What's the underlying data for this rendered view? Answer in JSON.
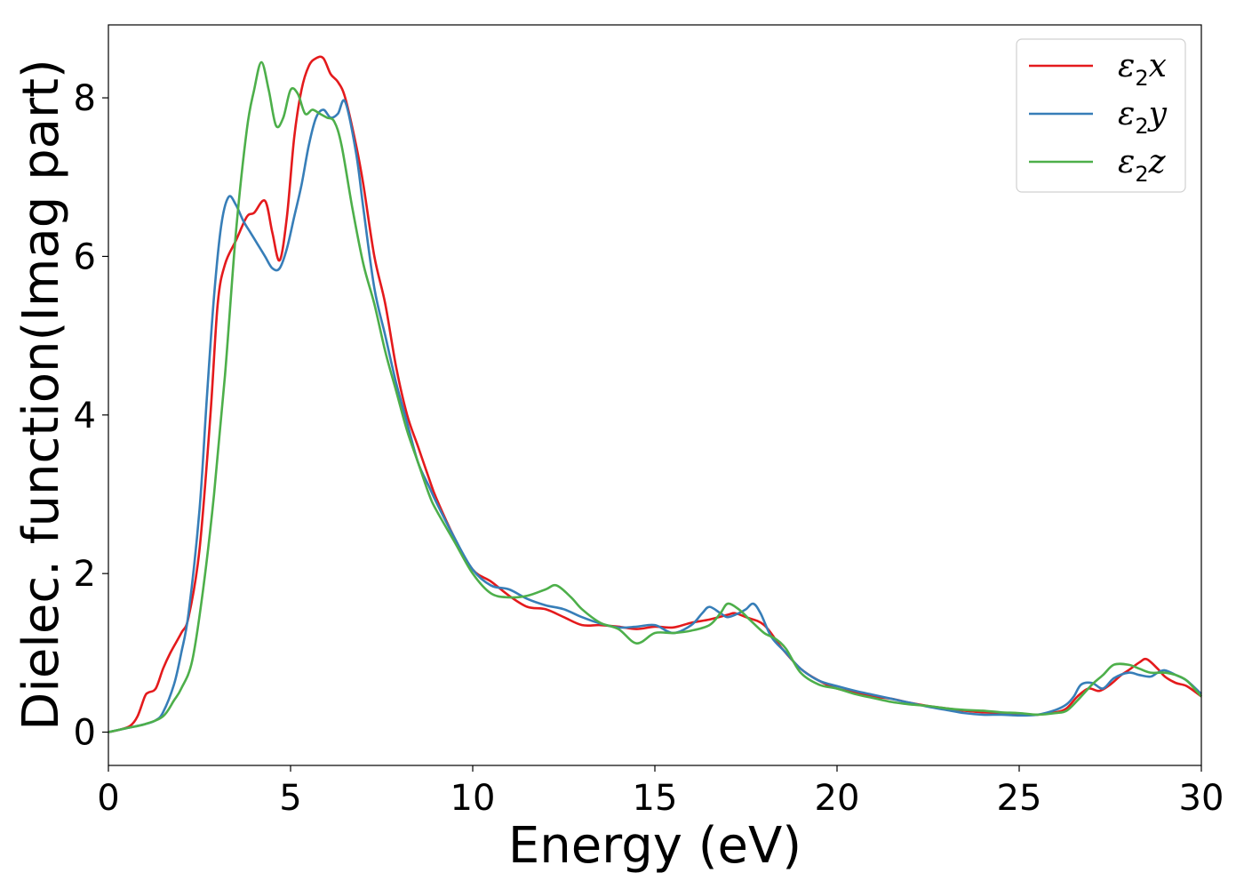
{
  "chart_data": {
    "type": "line",
    "title": "",
    "xlabel": "Energy (eV)",
    "ylabel": "Dielec. function(Imag part)",
    "xlim": [
      0,
      30
    ],
    "ylim": [
      -0.42,
      8.92
    ],
    "xticks": [
      0,
      5,
      10,
      15,
      20,
      25,
      30
    ],
    "yticks": [
      0,
      2,
      4,
      6,
      8
    ],
    "grid": false,
    "legend_position": "top-right",
    "series": [
      {
        "name": "ε2x",
        "color": "#e41a1c",
        "x": [
          0,
          0.3,
          0.6,
          0.8,
          1.0,
          1.1,
          1.3,
          1.5,
          1.7,
          2.0,
          2.2,
          2.5,
          2.8,
          3.0,
          3.2,
          3.5,
          3.8,
          4.0,
          4.3,
          4.5,
          4.7,
          4.9,
          5.1,
          5.3,
          5.5,
          5.7,
          5.9,
          6.1,
          6.3,
          6.5,
          6.8,
          7.0,
          7.3,
          7.6,
          7.9,
          8.2,
          8.5,
          8.8,
          9.0,
          9.5,
          10.0,
          10.5,
          11.0,
          11.5,
          12.0,
          12.5,
          13.0,
          13.5,
          14.0,
          14.5,
          15.0,
          15.5,
          16.0,
          16.5,
          17.0,
          17.2,
          17.5,
          18.0,
          18.5,
          19.0,
          19.5,
          20.0,
          20.5,
          21.0,
          21.5,
          22.0,
          22.5,
          23.0,
          23.5,
          24.0,
          24.5,
          25.0,
          25.5,
          26.0,
          26.3,
          26.6,
          26.9,
          27.2,
          27.5,
          27.8,
          28.0,
          28.3,
          28.5,
          28.8,
          29.0,
          29.3,
          29.6,
          30.0
        ],
        "values": [
          0.0,
          0.03,
          0.08,
          0.2,
          0.45,
          0.5,
          0.55,
          0.8,
          1.0,
          1.25,
          1.45,
          2.3,
          4.0,
          5.4,
          5.9,
          6.2,
          6.5,
          6.55,
          6.7,
          6.3,
          5.95,
          6.5,
          7.5,
          8.1,
          8.4,
          8.5,
          8.5,
          8.3,
          8.2,
          8.0,
          7.4,
          6.9,
          6.0,
          5.4,
          4.6,
          4.0,
          3.6,
          3.2,
          2.95,
          2.45,
          2.05,
          1.9,
          1.72,
          1.58,
          1.55,
          1.45,
          1.35,
          1.35,
          1.33,
          1.3,
          1.33,
          1.32,
          1.38,
          1.42,
          1.48,
          1.5,
          1.45,
          1.35,
          1.05,
          0.8,
          0.65,
          0.55,
          0.5,
          0.45,
          0.42,
          0.37,
          0.33,
          0.3,
          0.27,
          0.25,
          0.24,
          0.22,
          0.22,
          0.25,
          0.3,
          0.45,
          0.55,
          0.52,
          0.6,
          0.72,
          0.78,
          0.88,
          0.92,
          0.8,
          0.7,
          0.62,
          0.58,
          0.45
        ]
      },
      {
        "name": "ε2y",
        "color": "#377eb8",
        "x": [
          0,
          0.5,
          1.0,
          1.3,
          1.5,
          1.8,
          2.0,
          2.2,
          2.5,
          2.7,
          2.9,
          3.1,
          3.3,
          3.5,
          3.7,
          3.9,
          4.1,
          4.3,
          4.5,
          4.7,
          4.9,
          5.1,
          5.3,
          5.5,
          5.7,
          5.9,
          6.1,
          6.3,
          6.5,
          6.8,
          7.0,
          7.3,
          7.6,
          7.9,
          8.2,
          8.5,
          8.8,
          9.0,
          9.5,
          10.0,
          10.5,
          11.0,
          11.5,
          12.0,
          12.5,
          13.0,
          13.5,
          14.0,
          14.5,
          15.0,
          15.5,
          16.0,
          16.3,
          16.5,
          16.8,
          17.0,
          17.3,
          17.5,
          17.7,
          17.9,
          18.2,
          18.6,
          19.0,
          19.5,
          20.0,
          20.5,
          21.0,
          21.5,
          22.0,
          22.5,
          23.0,
          23.5,
          24.0,
          24.5,
          25.0,
          25.5,
          26.0,
          26.3,
          26.5,
          26.7,
          27.0,
          27.3,
          27.6,
          28.0,
          28.3,
          28.6,
          28.8,
          29.0,
          29.3,
          29.6,
          30.0
        ],
        "values": [
          0.0,
          0.05,
          0.1,
          0.15,
          0.25,
          0.6,
          1.0,
          1.5,
          2.8,
          4.2,
          5.5,
          6.4,
          6.75,
          6.65,
          6.45,
          6.3,
          6.15,
          6.0,
          5.85,
          5.85,
          6.1,
          6.5,
          6.9,
          7.4,
          7.75,
          7.85,
          7.75,
          7.8,
          7.95,
          7.3,
          6.6,
          5.6,
          5.0,
          4.4,
          3.9,
          3.4,
          3.1,
          2.9,
          2.45,
          2.05,
          1.85,
          1.8,
          1.68,
          1.6,
          1.55,
          1.45,
          1.37,
          1.32,
          1.33,
          1.35,
          1.25,
          1.35,
          1.5,
          1.58,
          1.5,
          1.45,
          1.5,
          1.55,
          1.62,
          1.5,
          1.2,
          1.0,
          0.8,
          0.65,
          0.58,
          0.52,
          0.47,
          0.42,
          0.37,
          0.32,
          0.28,
          0.24,
          0.22,
          0.22,
          0.21,
          0.22,
          0.28,
          0.35,
          0.45,
          0.6,
          0.62,
          0.55,
          0.68,
          0.75,
          0.72,
          0.7,
          0.75,
          0.78,
          0.72,
          0.65,
          0.48
        ]
      },
      {
        "name": "ε2z",
        "color": "#4daf4a",
        "x": [
          0,
          0.5,
          1.0,
          1.5,
          1.8,
          2.0,
          2.3,
          2.6,
          2.9,
          3.2,
          3.5,
          3.8,
          4.0,
          4.2,
          4.4,
          4.6,
          4.8,
          5.0,
          5.2,
          5.4,
          5.6,
          5.8,
          6.0,
          6.2,
          6.4,
          6.7,
          7.0,
          7.3,
          7.6,
          7.9,
          8.2,
          8.5,
          8.8,
          9.0,
          9.5,
          10.0,
          10.5,
          11.0,
          11.5,
          12.0,
          12.3,
          12.7,
          13.0,
          13.5,
          14.0,
          14.5,
          15.0,
          15.5,
          16.0,
          16.5,
          16.8,
          17.0,
          17.3,
          17.6,
          18.0,
          18.3,
          18.6,
          19.0,
          19.5,
          20.0,
          20.5,
          21.0,
          21.5,
          22.0,
          22.5,
          23.0,
          23.5,
          24.0,
          24.5,
          25.0,
          25.5,
          26.0,
          26.3,
          26.6,
          27.0,
          27.3,
          27.6,
          28.0,
          28.3,
          28.6,
          29.0,
          29.3,
          29.6,
          30.0
        ],
        "values": [
          0.0,
          0.05,
          0.1,
          0.2,
          0.4,
          0.55,
          0.9,
          1.8,
          3.0,
          4.5,
          6.3,
          7.6,
          8.1,
          8.45,
          8.1,
          7.65,
          7.75,
          8.1,
          8.05,
          7.8,
          7.85,
          7.8,
          7.75,
          7.7,
          7.4,
          6.6,
          5.9,
          5.4,
          4.8,
          4.3,
          3.8,
          3.4,
          3.0,
          2.8,
          2.4,
          2.0,
          1.75,
          1.7,
          1.72,
          1.8,
          1.85,
          1.7,
          1.55,
          1.38,
          1.3,
          1.12,
          1.25,
          1.25,
          1.28,
          1.35,
          1.5,
          1.62,
          1.55,
          1.42,
          1.25,
          1.18,
          1.05,
          0.75,
          0.6,
          0.55,
          0.48,
          0.43,
          0.38,
          0.35,
          0.33,
          0.3,
          0.28,
          0.27,
          0.25,
          0.24,
          0.22,
          0.24,
          0.27,
          0.4,
          0.6,
          0.72,
          0.85,
          0.85,
          0.8,
          0.75,
          0.75,
          0.72,
          0.65,
          0.45
        ]
      }
    ]
  }
}
